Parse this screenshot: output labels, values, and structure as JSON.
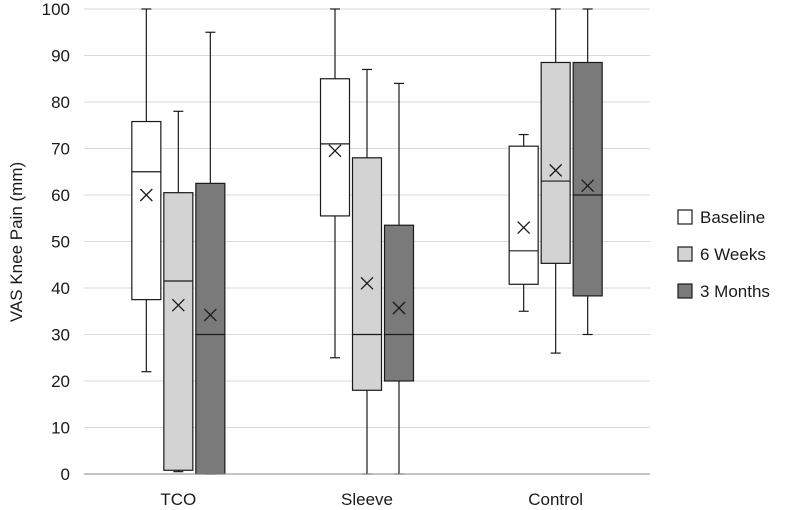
{
  "chart_data": {
    "type": "box",
    "title": "",
    "xlabel": "",
    "ylabel": "VAS Knee Pain (mm)",
    "ylim": [
      0,
      100
    ],
    "yticks": [
      0,
      10,
      20,
      30,
      40,
      50,
      60,
      70,
      80,
      90,
      100
    ],
    "grid": true,
    "legend_position": "right",
    "categories": [
      "TCO",
      "Sleeve",
      "Control"
    ],
    "series": [
      {
        "name": "Baseline",
        "color": "#ffffff",
        "boxes": [
          {
            "min": 22,
            "q1": 37.5,
            "median": 65,
            "q3": 75.8,
            "max": 100,
            "mean": 60
          },
          {
            "min": 25,
            "q1": 55.5,
            "median": 71,
            "q3": 85,
            "max": 100,
            "mean": 69.5
          },
          {
            "min": 35,
            "q1": 40.8,
            "median": 48,
            "q3": 70.5,
            "max": 73,
            "mean": 53
          }
        ]
      },
      {
        "name": "6 Weeks",
        "color": "#d3d3d3",
        "boxes": [
          {
            "min": 0.5,
            "q1": 0.8,
            "median": 41.5,
            "q3": 60.5,
            "max": 78,
            "mean": 36.3
          },
          {
            "min": 0,
            "q1": 18,
            "median": 30,
            "q3": 68,
            "max": 87,
            "mean": 41
          },
          {
            "min": 26,
            "q1": 45.3,
            "median": 63,
            "q3": 88.5,
            "max": 100,
            "mean": 65.3
          }
        ]
      },
      {
        "name": "3 Months",
        "color": "#7a7a7a",
        "boxes": [
          {
            "min": 0,
            "q1": 0,
            "median": 30,
            "q3": 62.5,
            "max": 95,
            "mean": 34.2
          },
          {
            "min": 0,
            "q1": 20,
            "median": 30,
            "q3": 53.5,
            "max": 84,
            "mean": 35.7
          },
          {
            "min": 30,
            "q1": 38.3,
            "median": 60,
            "q3": 88.5,
            "max": 100,
            "mean": 62
          }
        ]
      }
    ]
  }
}
